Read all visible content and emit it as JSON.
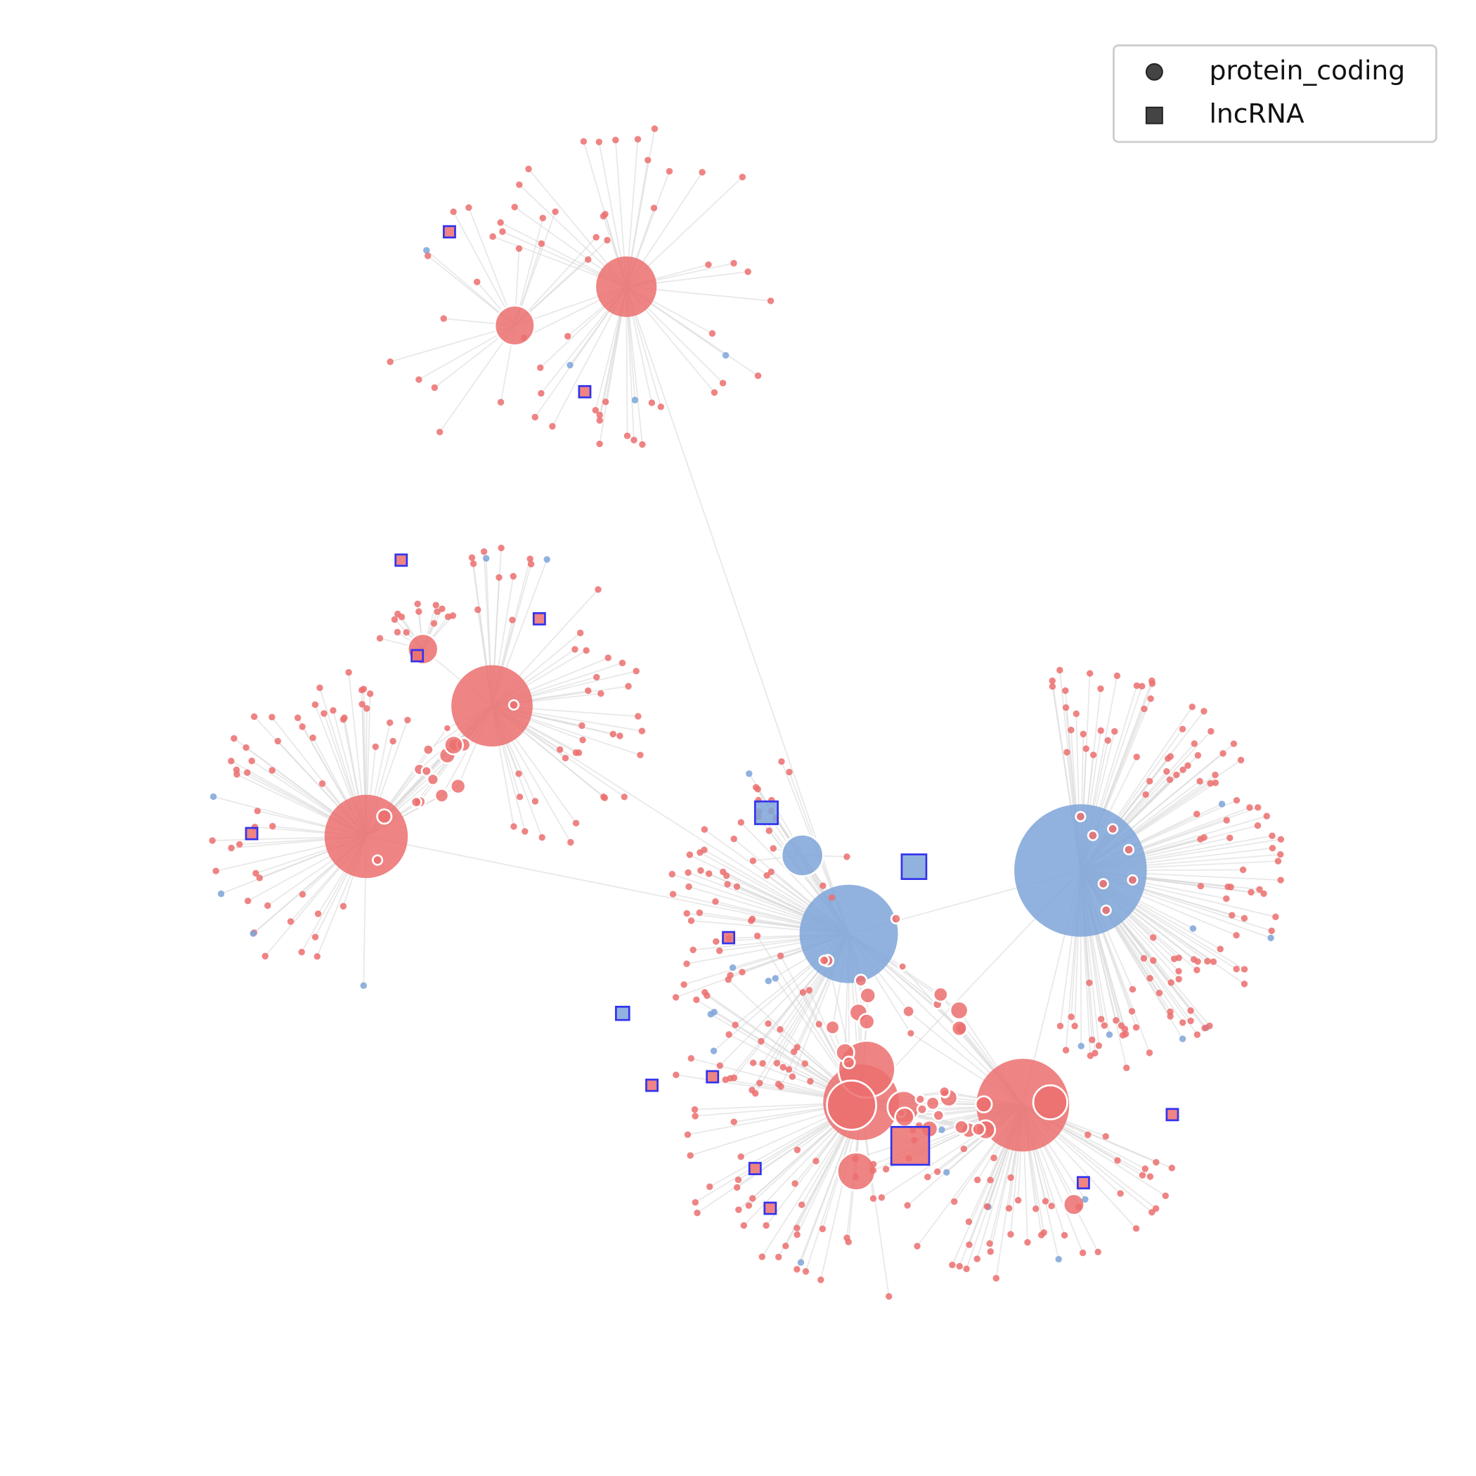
{
  "legend": {
    "items": [
      {
        "label": "protein_coding"
      },
      {
        "label": "lncRNA"
      }
    ]
  }
}
